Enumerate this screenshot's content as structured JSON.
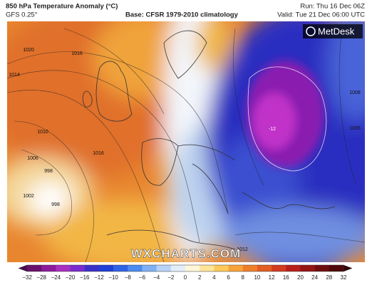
{
  "header": {
    "title": "850 hPa Temperature Anomaly (°C)",
    "model": "GFS 0.25°",
    "base": "Base: CFSR 1979-2010 climatology",
    "run": "Run: Thu 16 Dec 06Z",
    "valid": "Valid: Tue 21 Dec 06:00 UTC"
  },
  "logo": "MetDesk",
  "watermark": "WXCHARTS.COM",
  "map_labels": [
    "1020",
    "1016",
    "1014",
    "1010",
    "1006",
    "1002",
    "998",
    "998",
    "1016",
    "-12",
    "1008",
    "1006",
    "1012"
  ],
  "colorbar": {
    "labels": [
      "−32",
      "−28",
      "−24",
      "−20",
      "−16",
      "−12",
      "−10",
      "−8",
      "−6",
      "−4",
      "−2",
      "0",
      "2",
      "4",
      "6",
      "8",
      "10",
      "12",
      "16",
      "20",
      "24",
      "28",
      "32"
    ]
  }
}
